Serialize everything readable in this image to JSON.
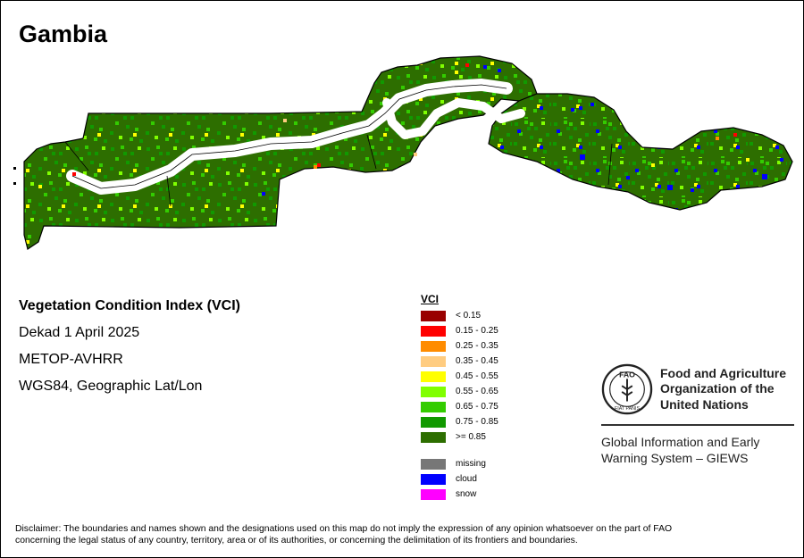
{
  "map": {
    "country": "Gambia",
    "index_title": "Vegetation Condition Index (VCI)",
    "period": "Dekad 1 April 2025",
    "sensor": "METOP-AVHRR",
    "projection": "WGS84, Geographic Lat/Lon"
  },
  "legend": {
    "title": "VCI",
    "classes": [
      {
        "label": "< 0.15",
        "color": "#990000"
      },
      {
        "label": "0.15 - 0.25",
        "color": "#ff0000"
      },
      {
        "label": "0.25 - 0.35",
        "color": "#ff8c00"
      },
      {
        "label": "0.35 - 0.45",
        "color": "#ffcc80"
      },
      {
        "label": "0.45 - 0.55",
        "color": "#ffff00"
      },
      {
        "label": "0.55 - 0.65",
        "color": "#80ff00"
      },
      {
        "label": "0.65 - 0.75",
        "color": "#33cc00"
      },
      {
        "label": "0.75 - 0.85",
        "color": "#119900"
      },
      {
        "label": ">= 0.85",
        "color": "#2d6e00"
      }
    ],
    "special": [
      {
        "label": "missing",
        "color": "#777777"
      },
      {
        "label": "cloud",
        "color": "#0000ff"
      },
      {
        "label": "snow",
        "color": "#ff00ff"
      }
    ]
  },
  "organization": {
    "logo_letters": "FAO",
    "logo_motto": "FIAT PANIS",
    "name_line1": "Food and Agriculture",
    "name_line2": "Organization of the",
    "name_line3": "United Nations",
    "system_line1": "Global Information and Early",
    "system_line2": "Warning System – GIEWS"
  },
  "disclaimer": {
    "line1": "Disclaimer: The boundaries and names shown and the designations used on this map do not imply the expression of any opinion whatsoever on the part of FAO",
    "line2": "concerning the legal status of any country, territory, area or of its authorities, or concerning the delimitation of its frontiers and boundaries."
  }
}
